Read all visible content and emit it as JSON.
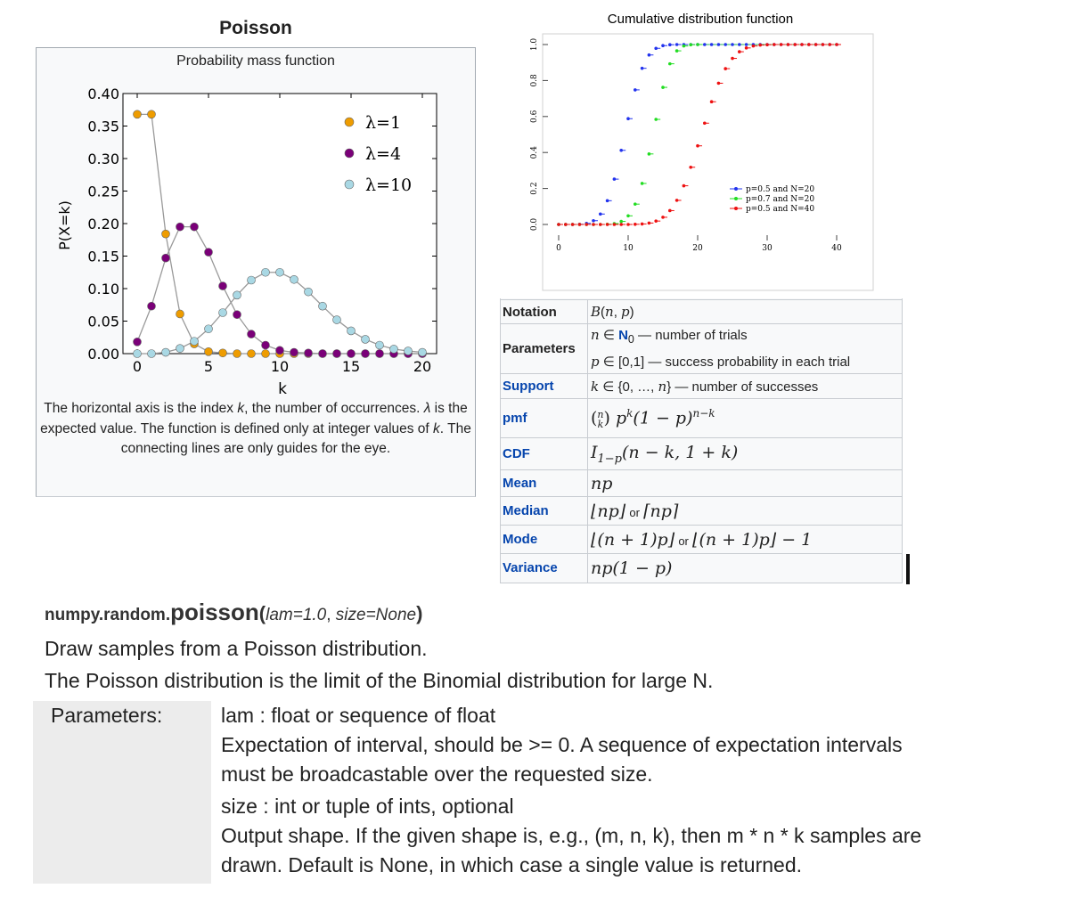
{
  "poisson": {
    "title": "Poisson",
    "pmf_title": "Probability mass function",
    "description_parts": [
      "The horizontal axis is the index ",
      "k",
      ", the number of occurrences. ",
      "λ",
      " is the expected value. The function is defined only at integer values of ",
      "k",
      ". The connecting lines are only guides for the eye."
    ]
  },
  "chart_data": [
    {
      "type": "line",
      "title": "Probability mass function",
      "xlabel": "k",
      "ylabel": "P(X=k)",
      "xlim": [
        -1,
        21
      ],
      "ylim": [
        0,
        0.4
      ],
      "xticks": [
        "0",
        "5",
        "10",
        "15",
        "20"
      ],
      "yticks": [
        "0.00",
        "0.05",
        "0.10",
        "0.15",
        "0.20",
        "0.25",
        "0.30",
        "0.35",
        "0.40"
      ],
      "x": [
        0,
        1,
        2,
        3,
        4,
        5,
        6,
        7,
        8,
        9,
        10,
        11,
        12,
        13,
        14,
        15,
        16,
        17,
        18,
        19,
        20
      ],
      "legend_position": "top-right",
      "series": [
        {
          "name": "λ=1",
          "color": "#ee9c00",
          "values": [
            0.368,
            0.368,
            0.184,
            0.061,
            0.015,
            0.003,
            0.001,
            0,
            0,
            0,
            0,
            0,
            0,
            0,
            0,
            0,
            0,
            0,
            0,
            0,
            0
          ]
        },
        {
          "name": "λ=4",
          "color": "#7a0078",
          "values": [
            0.018,
            0.073,
            0.147,
            0.195,
            0.195,
            0.156,
            0.104,
            0.06,
            0.03,
            0.013,
            0.005,
            0.002,
            0.001,
            0,
            0,
            0,
            0,
            0,
            0,
            0,
            0
          ]
        },
        {
          "name": "λ=10",
          "color": "#a9d8e4",
          "values": [
            0.0,
            0.0,
            0.002,
            0.008,
            0.019,
            0.038,
            0.063,
            0.09,
            0.113,
            0.125,
            0.125,
            0.114,
            0.095,
            0.073,
            0.052,
            0.035,
            0.022,
            0.013,
            0.007,
            0.004,
            0.002
          ]
        }
      ]
    },
    {
      "type": "line",
      "title": "Cumulative distribution function",
      "xlim": [
        0,
        40
      ],
      "ylim": [
        0,
        1
      ],
      "xticks": [
        "0",
        "10",
        "20",
        "30",
        "40"
      ],
      "yticks": [
        "0.0",
        "0.2",
        "0.4",
        "0.6",
        "0.8",
        "1.0"
      ],
      "legend_position": "bottom-right",
      "series": [
        {
          "name": "p=0.5 and N=20",
          "color": "#2233ee",
          "x": [
            0,
            1,
            2,
            3,
            4,
            5,
            6,
            7,
            8,
            9,
            10,
            11,
            12,
            13,
            14,
            15,
            16,
            17,
            18,
            19,
            20,
            21,
            22,
            23,
            24,
            25,
            26,
            27,
            28,
            29,
            30,
            31,
            32,
            33,
            34,
            35,
            36,
            37,
            38,
            39,
            40
          ],
          "values": [
            0,
            0,
            0,
            0.001,
            0.006,
            0.021,
            0.058,
            0.132,
            0.252,
            0.412,
            0.588,
            0.748,
            0.868,
            0.942,
            0.979,
            0.994,
            0.999,
            1,
            1,
            1,
            1,
            1,
            1,
            1,
            1,
            1,
            1,
            1,
            1,
            1,
            1,
            1,
            1,
            1,
            1,
            1,
            1,
            1,
            1,
            1,
            1
          ]
        },
        {
          "name": "p=0.7 and N=20",
          "color": "#22dd22",
          "x": [
            0,
            1,
            2,
            3,
            4,
            5,
            6,
            7,
            8,
            9,
            10,
            11,
            12,
            13,
            14,
            15,
            16,
            17,
            18,
            19,
            20
          ],
          "values": [
            0,
            0,
            0,
            0,
            0,
            0,
            0,
            0.001,
            0.005,
            0.017,
            0.048,
            0.113,
            0.228,
            0.392,
            0.584,
            0.762,
            0.893,
            0.965,
            0.992,
            0.999,
            1
          ]
        },
        {
          "name": "p=0.5 and N=40",
          "color": "#ee1111",
          "x": [
            0,
            1,
            2,
            3,
            4,
            5,
            6,
            7,
            8,
            9,
            10,
            11,
            12,
            13,
            14,
            15,
            16,
            17,
            18,
            19,
            20,
            21,
            22,
            23,
            24,
            25,
            26,
            27,
            28,
            29,
            30,
            31,
            32,
            33,
            34,
            35,
            36,
            37,
            38,
            39,
            40
          ],
          "values": [
            0,
            0,
            0,
            0,
            0,
            0,
            0,
            0,
            0,
            0,
            0,
            0.001,
            0.003,
            0.008,
            0.019,
            0.04,
            0.077,
            0.134,
            0.215,
            0.318,
            0.437,
            0.563,
            0.682,
            0.785,
            0.866,
            0.923,
            0.96,
            0.981,
            0.992,
            0.997,
            0.999,
            1,
            1,
            1,
            1,
            1,
            1,
            1,
            1,
            1,
            1
          ]
        }
      ]
    }
  ],
  "binomial": {
    "rows": [
      {
        "label": "Notation",
        "link": false
      },
      {
        "label": "Parameters",
        "link": false,
        "line1_suffix": " — number of trials",
        "line2_suffix": " — success probability in each trial"
      },
      {
        "label": "Support",
        "link": true,
        "suffix": " — number of successes"
      },
      {
        "label": "pmf",
        "link": true
      },
      {
        "label": "CDF",
        "link": true
      },
      {
        "label": "Mean",
        "link": true
      },
      {
        "label": "Median",
        "link": true,
        "or": "or"
      },
      {
        "label": "Mode",
        "link": true,
        "or": "or"
      },
      {
        "label": "Variance",
        "link": true
      }
    ]
  },
  "numpy": {
    "signature_module": "numpy.random.",
    "signature_fn": "poisson",
    "signature_open": "(",
    "arg1": "lam=1.0",
    "sep": ", ",
    "arg2": "size=None",
    "signature_close": ")",
    "summary": "Draw samples from a Poisson distribution.",
    "extended": "The Poisson distribution is the limit of the Binomial distribution for large N.",
    "params_label": "Parameters:",
    "params": [
      "lam : float or sequence of float",
      "Expectation of interval, should be >= 0. A sequence of expectation intervals",
      "must be broadcastable over the requested size.",
      "size : int or tuple of ints, optional",
      "Output shape. If the given shape is, e.g., (m, n, k), then m * n * k samples are",
      "drawn. Default is None, in which case a single value is returned."
    ]
  }
}
